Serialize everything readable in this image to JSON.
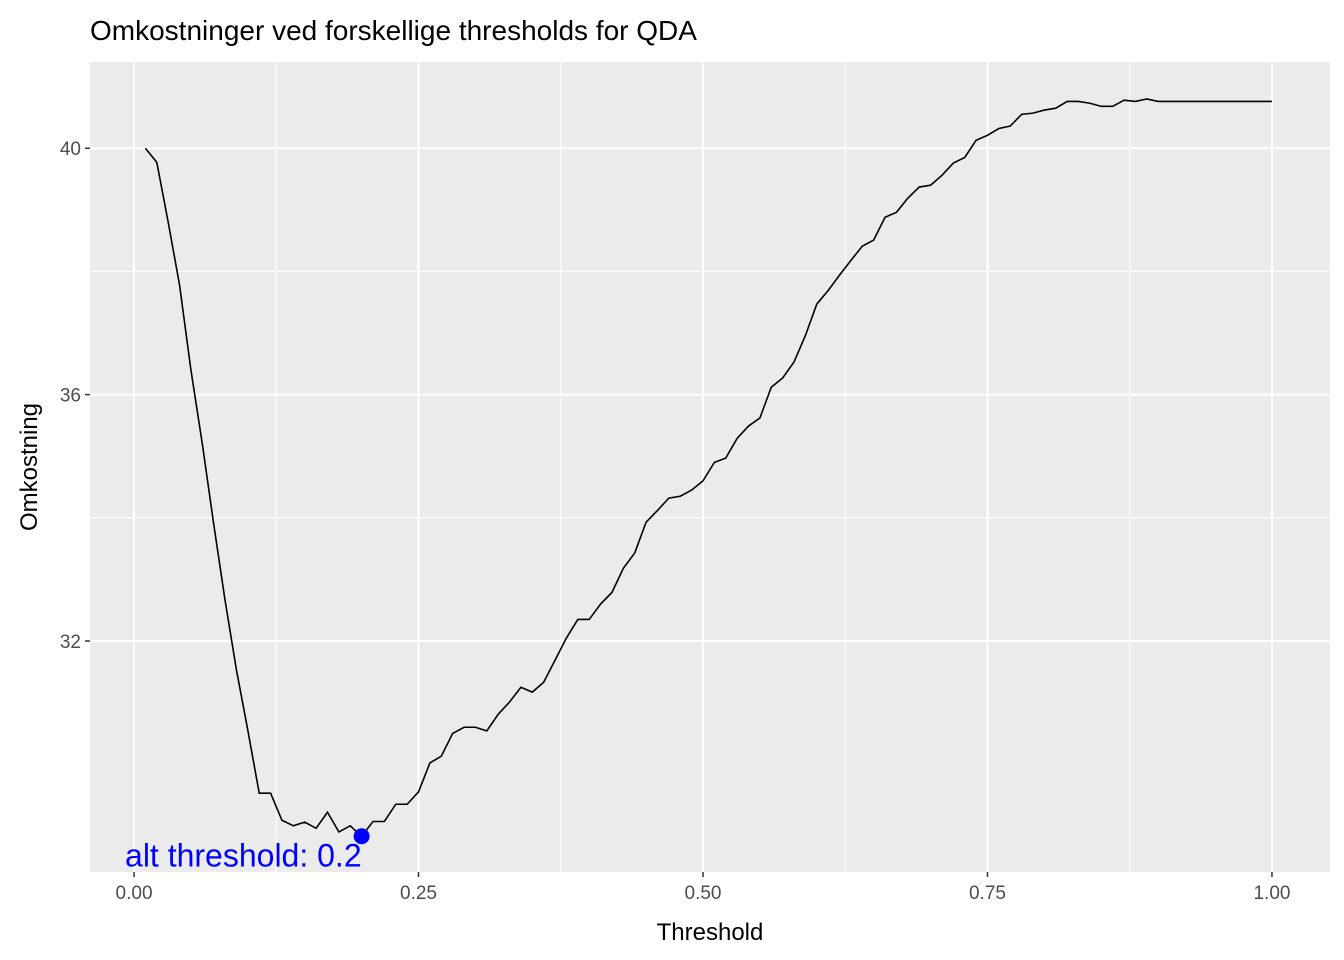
{
  "chart_data": {
    "type": "line",
    "title": "Omkostninger ved forskellige thresholds for QDA",
    "x_label": "Threshold",
    "y_label": "Omkostning",
    "x": [
      0.01,
      0.02,
      0.03,
      0.04,
      0.05,
      0.06,
      0.07,
      0.08,
      0.09,
      0.1,
      0.11,
      0.12,
      0.13,
      0.14,
      0.15,
      0.16,
      0.17,
      0.18,
      0.19,
      0.2,
      0.21,
      0.22,
      0.23,
      0.24,
      0.25,
      0.26,
      0.27,
      0.28,
      0.29,
      0.3,
      0.31,
      0.32,
      0.33,
      0.34,
      0.35,
      0.36,
      0.37,
      0.38,
      0.39,
      0.4,
      0.41,
      0.42,
      0.43,
      0.44,
      0.45,
      0.46,
      0.47,
      0.48,
      0.49,
      0.5,
      0.51,
      0.52,
      0.53,
      0.54,
      0.55,
      0.56,
      0.57,
      0.58,
      0.59,
      0.6,
      0.61,
      0.62,
      0.63,
      0.64,
      0.65,
      0.66,
      0.67,
      0.68,
      0.69,
      0.7,
      0.71,
      0.72,
      0.73,
      0.74,
      0.75,
      0.76,
      0.77,
      0.78,
      0.79,
      0.8,
      0.81,
      0.82,
      0.83,
      0.84,
      0.85,
      0.86,
      0.87,
      0.88,
      0.89,
      0.9,
      0.91,
      0.92,
      0.93,
      0.94,
      0.95,
      0.96,
      0.97,
      0.98,
      0.99,
      1.0
    ],
    "series": [
      {
        "color": "#000000",
        "values": [
          40.0,
          39.77,
          38.8,
          37.78,
          36.4,
          35.2,
          33.9,
          32.66,
          31.53,
          30.55,
          29.53,
          29.53,
          29.09,
          29.0,
          29.06,
          28.96,
          29.22,
          28.9,
          29.0,
          28.83,
          29.07,
          29.07,
          29.35,
          29.35,
          29.55,
          30.02,
          30.13,
          30.5,
          30.6,
          30.6,
          30.54,
          30.81,
          31.01,
          31.25,
          31.17,
          31.33,
          31.69,
          32.05,
          32.35,
          32.35,
          32.6,
          32.79,
          33.18,
          33.43,
          33.93,
          34.12,
          34.32,
          34.35,
          34.45,
          34.6,
          34.9,
          34.97,
          35.29,
          35.49,
          35.62,
          36.12,
          36.27,
          36.53,
          36.96,
          37.47,
          37.69,
          37.94,
          38.18,
          38.41,
          38.51,
          38.88,
          38.96,
          39.19,
          39.37,
          39.4,
          39.56,
          39.76,
          39.85,
          40.13,
          40.21,
          40.32,
          40.36,
          40.55,
          40.57,
          40.62,
          40.65,
          40.76,
          40.76,
          40.73,
          40.68,
          40.68,
          40.78,
          40.76,
          40.8,
          40.76,
          40.76,
          40.76,
          40.76,
          40.76,
          40.76,
          40.76,
          40.76,
          40.76,
          40.76,
          40.76
        ]
      }
    ],
    "highlight": {
      "x": 0.2,
      "y": 28.83,
      "label": "alt threshold: 0.2",
      "color": "#0000ff"
    },
    "xlim": [
      -0.0387,
      1.051
    ],
    "ylim": [
      28.25,
      41.4
    ],
    "xticks": [
      {
        "value": 0,
        "label": "0.00"
      },
      {
        "value": 0.25,
        "label": "0.25"
      },
      {
        "value": 0.5,
        "label": "0.50"
      },
      {
        "value": 0.75,
        "label": "0.75"
      },
      {
        "value": 1,
        "label": "1.00"
      }
    ],
    "yticks": [
      32,
      36,
      40
    ],
    "grid": true,
    "minor_grid": true
  }
}
